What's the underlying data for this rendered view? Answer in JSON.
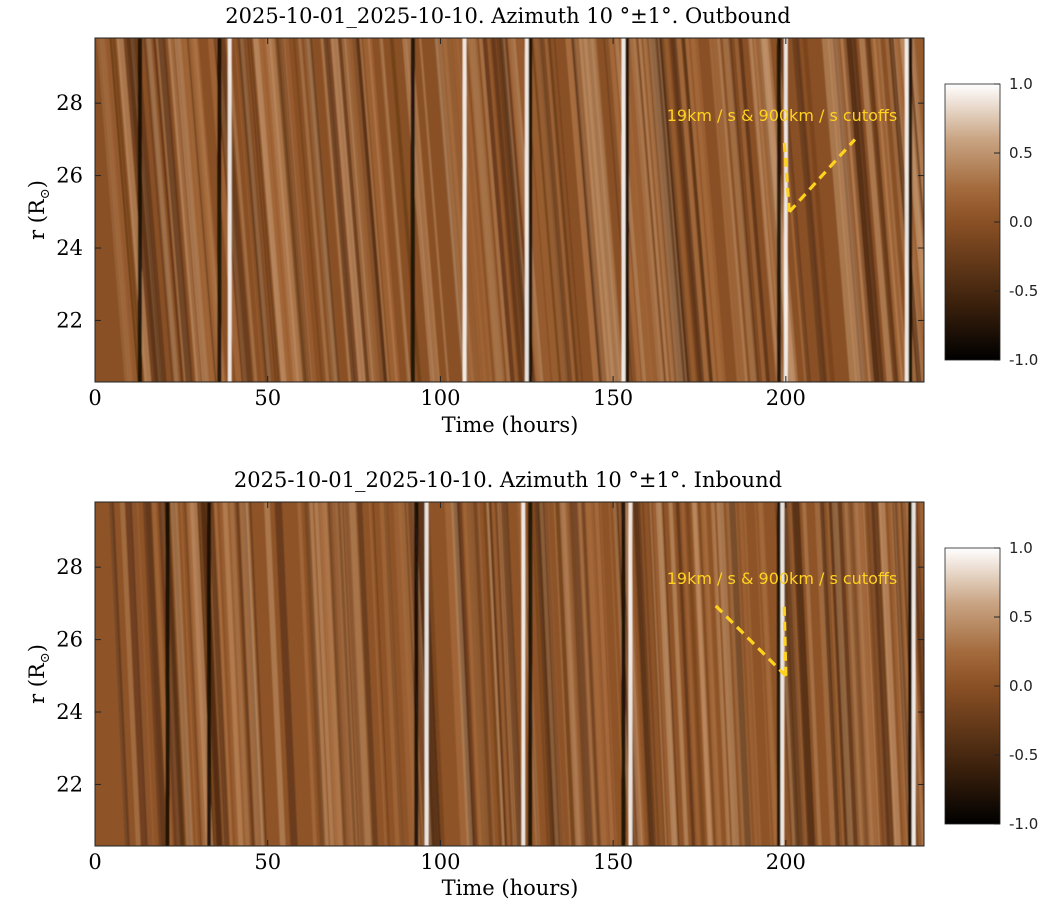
{
  "chart_data": [
    {
      "type": "heatmap",
      "title": "2025-10-01_2025-10-10. Azimuth 10  °±1°. Outbound",
      "xlabel": "Time (hours)",
      "ylabel": "r (R",
      "ylabel_sub": "⊙",
      "ylabel_close": ")",
      "xlim": [
        0,
        240
      ],
      "ylim": [
        20.3,
        29.8
      ],
      "x_ticks": [
        0,
        50,
        100,
        150,
        200
      ],
      "y_ticks": [
        22,
        24,
        26,
        28
      ],
      "colorbar": {
        "min": -1.0,
        "max": 1.0,
        "ticks": [
          "1.0",
          "0.5",
          "0.0",
          "-0.5",
          "-1.0"
        ]
      },
      "annotation": {
        "text": "19km / s & 900km / s cutoffs",
        "color": "#ffd21f",
        "lines": [
          {
            "from": [
              201,
              25.0
            ],
            "to": [
              199.5,
              27.0
            ]
          },
          {
            "from": [
              201,
              25.0
            ],
            "to": [
              220,
              27.0
            ]
          }
        ]
      },
      "bright_streaks_hours": [
        39,
        107,
        125,
        153,
        200,
        235
      ],
      "dark_streaks_hours": [
        13,
        36,
        92,
        126,
        154,
        198,
        236
      ]
    },
    {
      "type": "heatmap",
      "title": "2025-10-01_2025-10-10. Azimuth 10  °±1°. Inbound",
      "xlabel": "Time (hours)",
      "ylabel": "r (R",
      "ylabel_sub": "⊙",
      "ylabel_close": ")",
      "xlim": [
        0,
        240
      ],
      "ylim": [
        20.3,
        29.8
      ],
      "x_ticks": [
        0,
        50,
        100,
        150,
        200
      ],
      "y_ticks": [
        22,
        24,
        26,
        28
      ],
      "colorbar": {
        "min": -1.0,
        "max": 1.0,
        "ticks": [
          "1.0",
          "0.5",
          "0.0",
          "-0.5",
          "-1.0"
        ]
      },
      "annotation": {
        "text": "19km / s & 900km / s cutoffs",
        "color": "#ffd21f",
        "lines": [
          {
            "from": [
              200,
              25.0
            ],
            "to": [
              179,
              27.0
            ]
          },
          {
            "from": [
              200,
              25.0
            ],
            "to": [
              199.5,
              27.0
            ]
          }
        ]
      },
      "bright_streaks_hours": [
        96,
        124,
        155,
        199,
        237
      ],
      "dark_streaks_hours": [
        21,
        33,
        93,
        126,
        153,
        198,
        236
      ]
    }
  ],
  "colors": {
    "colormap": [
      "#000000",
      "#3a200c",
      "#8a5025",
      "#a36a3c",
      "#c9a483",
      "#ffffff"
    ],
    "frame": "#222222"
  }
}
